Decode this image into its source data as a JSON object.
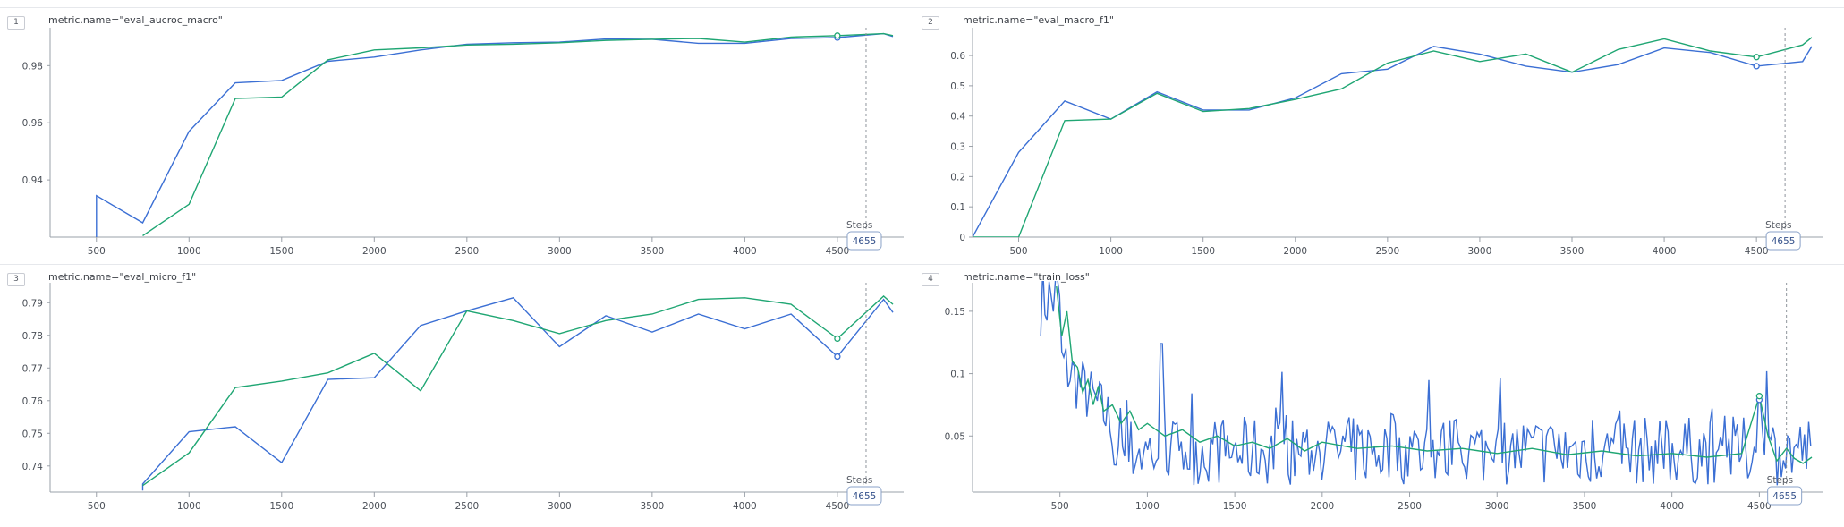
{
  "colors": {
    "blue": "#3b6fd4",
    "green": "#1fa673",
    "axis": "#9aa0a8",
    "cursor": "#8f949c"
  },
  "panels": [
    {
      "badge": "1",
      "title": "metric.name=\"eval_aucroc_macro\""
    },
    {
      "badge": "2",
      "title": "metric.name=\"eval_macro_f1\""
    },
    {
      "badge": "3",
      "title": "metric.name=\"eval_micro_f1\""
    },
    {
      "badge": "4",
      "title": "metric.name=\"train_loss\""
    }
  ],
  "cursor": {
    "label": "Steps",
    "value": "4655",
    "step": 4655
  },
  "chart_data": [
    {
      "type": "line",
      "title": "metric.name=\"eval_aucroc_macro\"",
      "xlim": [
        250,
        4800
      ],
      "ylim": [
        0.92,
        0.992
      ],
      "xticks": [
        500,
        1000,
        1500,
        2000,
        2500,
        3000,
        3500,
        4000,
        4500
      ],
      "yticks": [
        0.94,
        0.96,
        0.98
      ],
      "ytick_labels": [
        "0.94",
        "0.96",
        "0.98"
      ],
      "series": [
        {
          "color": "blue",
          "x": [
            500,
            500,
            750,
            1000,
            1250,
            1500,
            1750,
            2000,
            2250,
            2500,
            2750,
            3000,
            3250,
            3500,
            3750,
            4000,
            4250,
            4500,
            4750,
            4800
          ],
          "y": [
            0.918,
            0.9345,
            0.925,
            0.957,
            0.974,
            0.9748,
            0.9815,
            0.983,
            0.9855,
            0.9875,
            0.988,
            0.9882,
            0.9893,
            0.9892,
            0.9878,
            0.9878,
            0.9895,
            0.9898,
            0.9912,
            0.9902
          ]
        },
        {
          "color": "green",
          "x": [
            750,
            1000,
            1250,
            1500,
            1750,
            2000,
            2250,
            2500,
            2750,
            3000,
            3250,
            3500,
            3750,
            4000,
            4250,
            4500,
            4750,
            4800
          ],
          "y": [
            0.9205,
            0.9315,
            0.9685,
            0.969,
            0.982,
            0.9855,
            0.9862,
            0.9872,
            0.9875,
            0.988,
            0.9888,
            0.9892,
            0.9895,
            0.9882,
            0.99,
            0.9905,
            0.9912,
            0.9905
          ]
        }
      ],
      "markers": [
        {
          "color": "blue",
          "x": 4500,
          "y": 0.9898
        },
        {
          "color": "green",
          "x": 4500,
          "y": 0.9905
        }
      ]
    },
    {
      "type": "line",
      "title": "metric.name=\"eval_macro_f1\"",
      "xlim": [
        250,
        4800
      ],
      "ylim": [
        0,
        0.68
      ],
      "xticks": [
        500,
        1000,
        1500,
        2000,
        2500,
        3000,
        3500,
        4000,
        4500
      ],
      "yticks": [
        0,
        0.1,
        0.2,
        0.3,
        0.4,
        0.5,
        0.6
      ],
      "ytick_labels": [
        "0",
        "0.1",
        "0.2",
        "0.3",
        "0.4",
        "0.5",
        "0.6"
      ],
      "series": [
        {
          "color": "blue",
          "x": [
            250,
            500,
            750,
            1000,
            1250,
            1500,
            1750,
            2000,
            2250,
            2500,
            2750,
            3000,
            3250,
            3500,
            3750,
            4000,
            4250,
            4500,
            4750,
            4800
          ],
          "y": [
            0.0,
            0.28,
            0.45,
            0.39,
            0.48,
            0.42,
            0.42,
            0.46,
            0.54,
            0.555,
            0.63,
            0.605,
            0.565,
            0.545,
            0.57,
            0.625,
            0.61,
            0.565,
            0.58,
            0.63
          ]
        },
        {
          "color": "green",
          "x": [
            250,
            500,
            750,
            1000,
            1250,
            1500,
            1750,
            2000,
            2250,
            2500,
            2750,
            3000,
            3250,
            3500,
            3750,
            4000,
            4250,
            4500,
            4750,
            4800
          ],
          "y": [
            0.0,
            0.0,
            0.385,
            0.39,
            0.475,
            0.415,
            0.425,
            0.455,
            0.49,
            0.575,
            0.615,
            0.58,
            0.605,
            0.545,
            0.62,
            0.655,
            0.615,
            0.595,
            0.635,
            0.66
          ]
        }
      ],
      "markers": [
        {
          "color": "blue",
          "x": 4500,
          "y": 0.565
        },
        {
          "color": "green",
          "x": 4500,
          "y": 0.595
        }
      ]
    },
    {
      "type": "line",
      "title": "metric.name=\"eval_micro_f1\"",
      "xlim": [
        250,
        4800
      ],
      "ylim": [
        0.732,
        0.795
      ],
      "xticks": [
        500,
        1000,
        1500,
        2000,
        2500,
        3000,
        3500,
        4000,
        4500
      ],
      "yticks": [
        0.74,
        0.75,
        0.76,
        0.77,
        0.78,
        0.79
      ],
      "ytick_labels": [
        "0.74",
        "0.75",
        "0.76",
        "0.77",
        "0.78",
        "0.79"
      ],
      "series": [
        {
          "color": "blue",
          "x": [
            750,
            750,
            1000,
            1250,
            1500,
            1750,
            2000,
            2250,
            2500,
            2750,
            3000,
            3250,
            3500,
            3750,
            4000,
            4250,
            4500,
            4750,
            4800
          ],
          "y": [
            0.7325,
            0.7345,
            0.7505,
            0.752,
            0.741,
            0.7665,
            0.767,
            0.783,
            0.7875,
            0.7915,
            0.7765,
            0.786,
            0.781,
            0.7865,
            0.782,
            0.7865,
            0.7735,
            0.791,
            0.787
          ]
        },
        {
          "color": "green",
          "x": [
            750,
            1000,
            1250,
            1500,
            1750,
            2000,
            2250,
            2500,
            2750,
            3000,
            3250,
            3500,
            3750,
            4000,
            4250,
            4500,
            4750,
            4800
          ],
          "y": [
            0.734,
            0.744,
            0.764,
            0.766,
            0.7685,
            0.7745,
            0.763,
            0.7875,
            0.7845,
            0.7805,
            0.7845,
            0.7865,
            0.791,
            0.7915,
            0.7895,
            0.779,
            0.792,
            0.7895
          ]
        }
      ],
      "markers": [
        {
          "color": "blue",
          "x": 4500,
          "y": 0.7735
        },
        {
          "color": "green",
          "x": 4500,
          "y": 0.779
        }
      ]
    },
    {
      "type": "line",
      "title": "metric.name=\"train_loss\"",
      "xlim": [
        0,
        4800
      ],
      "ylim": [
        0.005,
        0.17
      ],
      "xticks": [
        500,
        1000,
        1500,
        2000,
        2500,
        3000,
        3500,
        4000,
        4500
      ],
      "yticks": [
        0.05,
        0.1,
        0.15
      ],
      "ytick_labels": [
        "0.05",
        "0.1",
        "0.15"
      ],
      "series": [
        {
          "color": "green",
          "x": [
            480,
            510,
            540,
            570,
            600,
            630,
            660,
            690,
            720,
            750,
            800,
            850,
            900,
            950,
            1000,
            1100,
            1200,
            1300,
            1400,
            1500,
            1600,
            1700,
            1800,
            1900,
            2000,
            2200,
            2400,
            2600,
            2800,
            3000,
            3200,
            3400,
            3600,
            3800,
            4000,
            4200,
            4400,
            4500,
            4550,
            4600,
            4655,
            4700,
            4750,
            4800
          ],
          "y": [
            0.17,
            0.13,
            0.15,
            0.11,
            0.105,
            0.085,
            0.095,
            0.075,
            0.09,
            0.07,
            0.075,
            0.06,
            0.07,
            0.055,
            0.06,
            0.05,
            0.055,
            0.045,
            0.05,
            0.042,
            0.045,
            0.04,
            0.048,
            0.038,
            0.045,
            0.04,
            0.042,
            0.038,
            0.04,
            0.036,
            0.04,
            0.035,
            0.038,
            0.034,
            0.036,
            0.033,
            0.036,
            0.082,
            0.05,
            0.03,
            0.04,
            0.032,
            0.028,
            0.033
          ]
        }
      ],
      "noisy_series": {
        "color": "blue",
        "x_start": 390,
        "x_end": 4800,
        "step": 12
      },
      "markers": [
        {
          "color": "blue",
          "x": 4500,
          "y": 0.079
        },
        {
          "color": "green",
          "x": 4500,
          "y": 0.082
        }
      ]
    }
  ]
}
